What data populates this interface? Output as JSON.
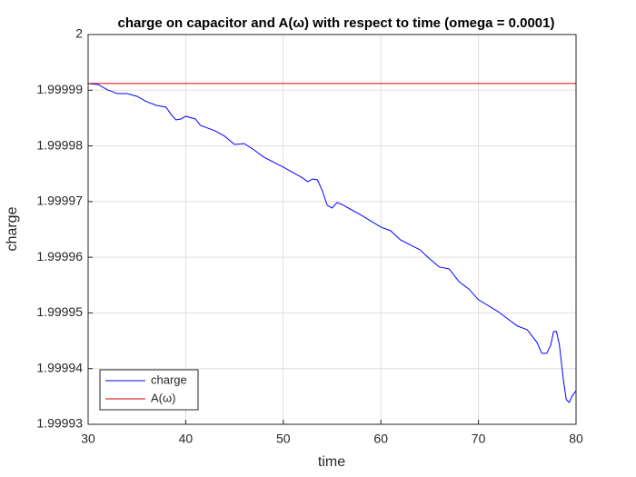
{
  "chart_data": {
    "type": "line",
    "title": "charge on capacitor and A(ω) with respect to time (omega = 0.0001)",
    "x_label": "time",
    "y_label": "charge",
    "xlim": [
      30,
      80
    ],
    "ylim": [
      1.99993,
      2
    ],
    "xticks": [
      30,
      40,
      50,
      60,
      70,
      80
    ],
    "yticks": [
      1.99993,
      1.99994,
      1.99995,
      1.99996,
      1.99997,
      1.99998,
      1.99999,
      2
    ],
    "grid": true,
    "legend_position": "southwest",
    "series": [
      {
        "name": "charge",
        "color": "#0000ff",
        "x": [
          30,
          31,
          32,
          33,
          34,
          35,
          36,
          37,
          38,
          38.5,
          39,
          39.5,
          40,
          41,
          41.5,
          43,
          44,
          45,
          46,
          47,
          48,
          50,
          52,
          52.5,
          53,
          53.5,
          54,
          54.5,
          55,
          55.5,
          56,
          58,
          60,
          61,
          62,
          64,
          65,
          66,
          67,
          68,
          69,
          70,
          72,
          74,
          75,
          76,
          76.5,
          77,
          77.4,
          77.7,
          78,
          78.3,
          78.7,
          79,
          79.3,
          79.6,
          80
        ],
        "values": [
          1.99999119,
          1.99999103,
          1.99999005,
          1.9999894,
          1.9999894,
          1.99998891,
          1.99998793,
          1.99998728,
          1.99998695,
          1.99998564,
          1.99998467,
          1.99998483,
          1.99998532,
          1.99998483,
          1.99998369,
          1.99998271,
          1.99998173,
          1.99998026,
          1.99998042,
          1.99997928,
          1.99997798,
          1.99997618,
          1.99997423,
          1.99997357,
          1.99997406,
          1.9999739,
          1.99997194,
          1.99996933,
          1.99996884,
          1.99996982,
          1.99996949,
          1.99996754,
          1.99996542,
          1.99996476,
          1.99996313,
          1.99996134,
          1.99995971,
          1.99995824,
          1.99995791,
          1.99995563,
          1.99995432,
          1.99995237,
          1.99995025,
          1.99994764,
          1.99994698,
          1.9999447,
          1.99994274,
          1.99994274,
          1.99994421,
          1.99994666,
          1.99994666,
          1.99994421,
          1.99993801,
          1.99993442,
          1.99993393,
          1.99993507,
          1.99993605
        ]
      },
      {
        "name": "A(ω)",
        "color": "#d00000",
        "x": [
          30,
          80
        ],
        "values": [
          1.9999912,
          1.9999912
        ]
      }
    ]
  }
}
